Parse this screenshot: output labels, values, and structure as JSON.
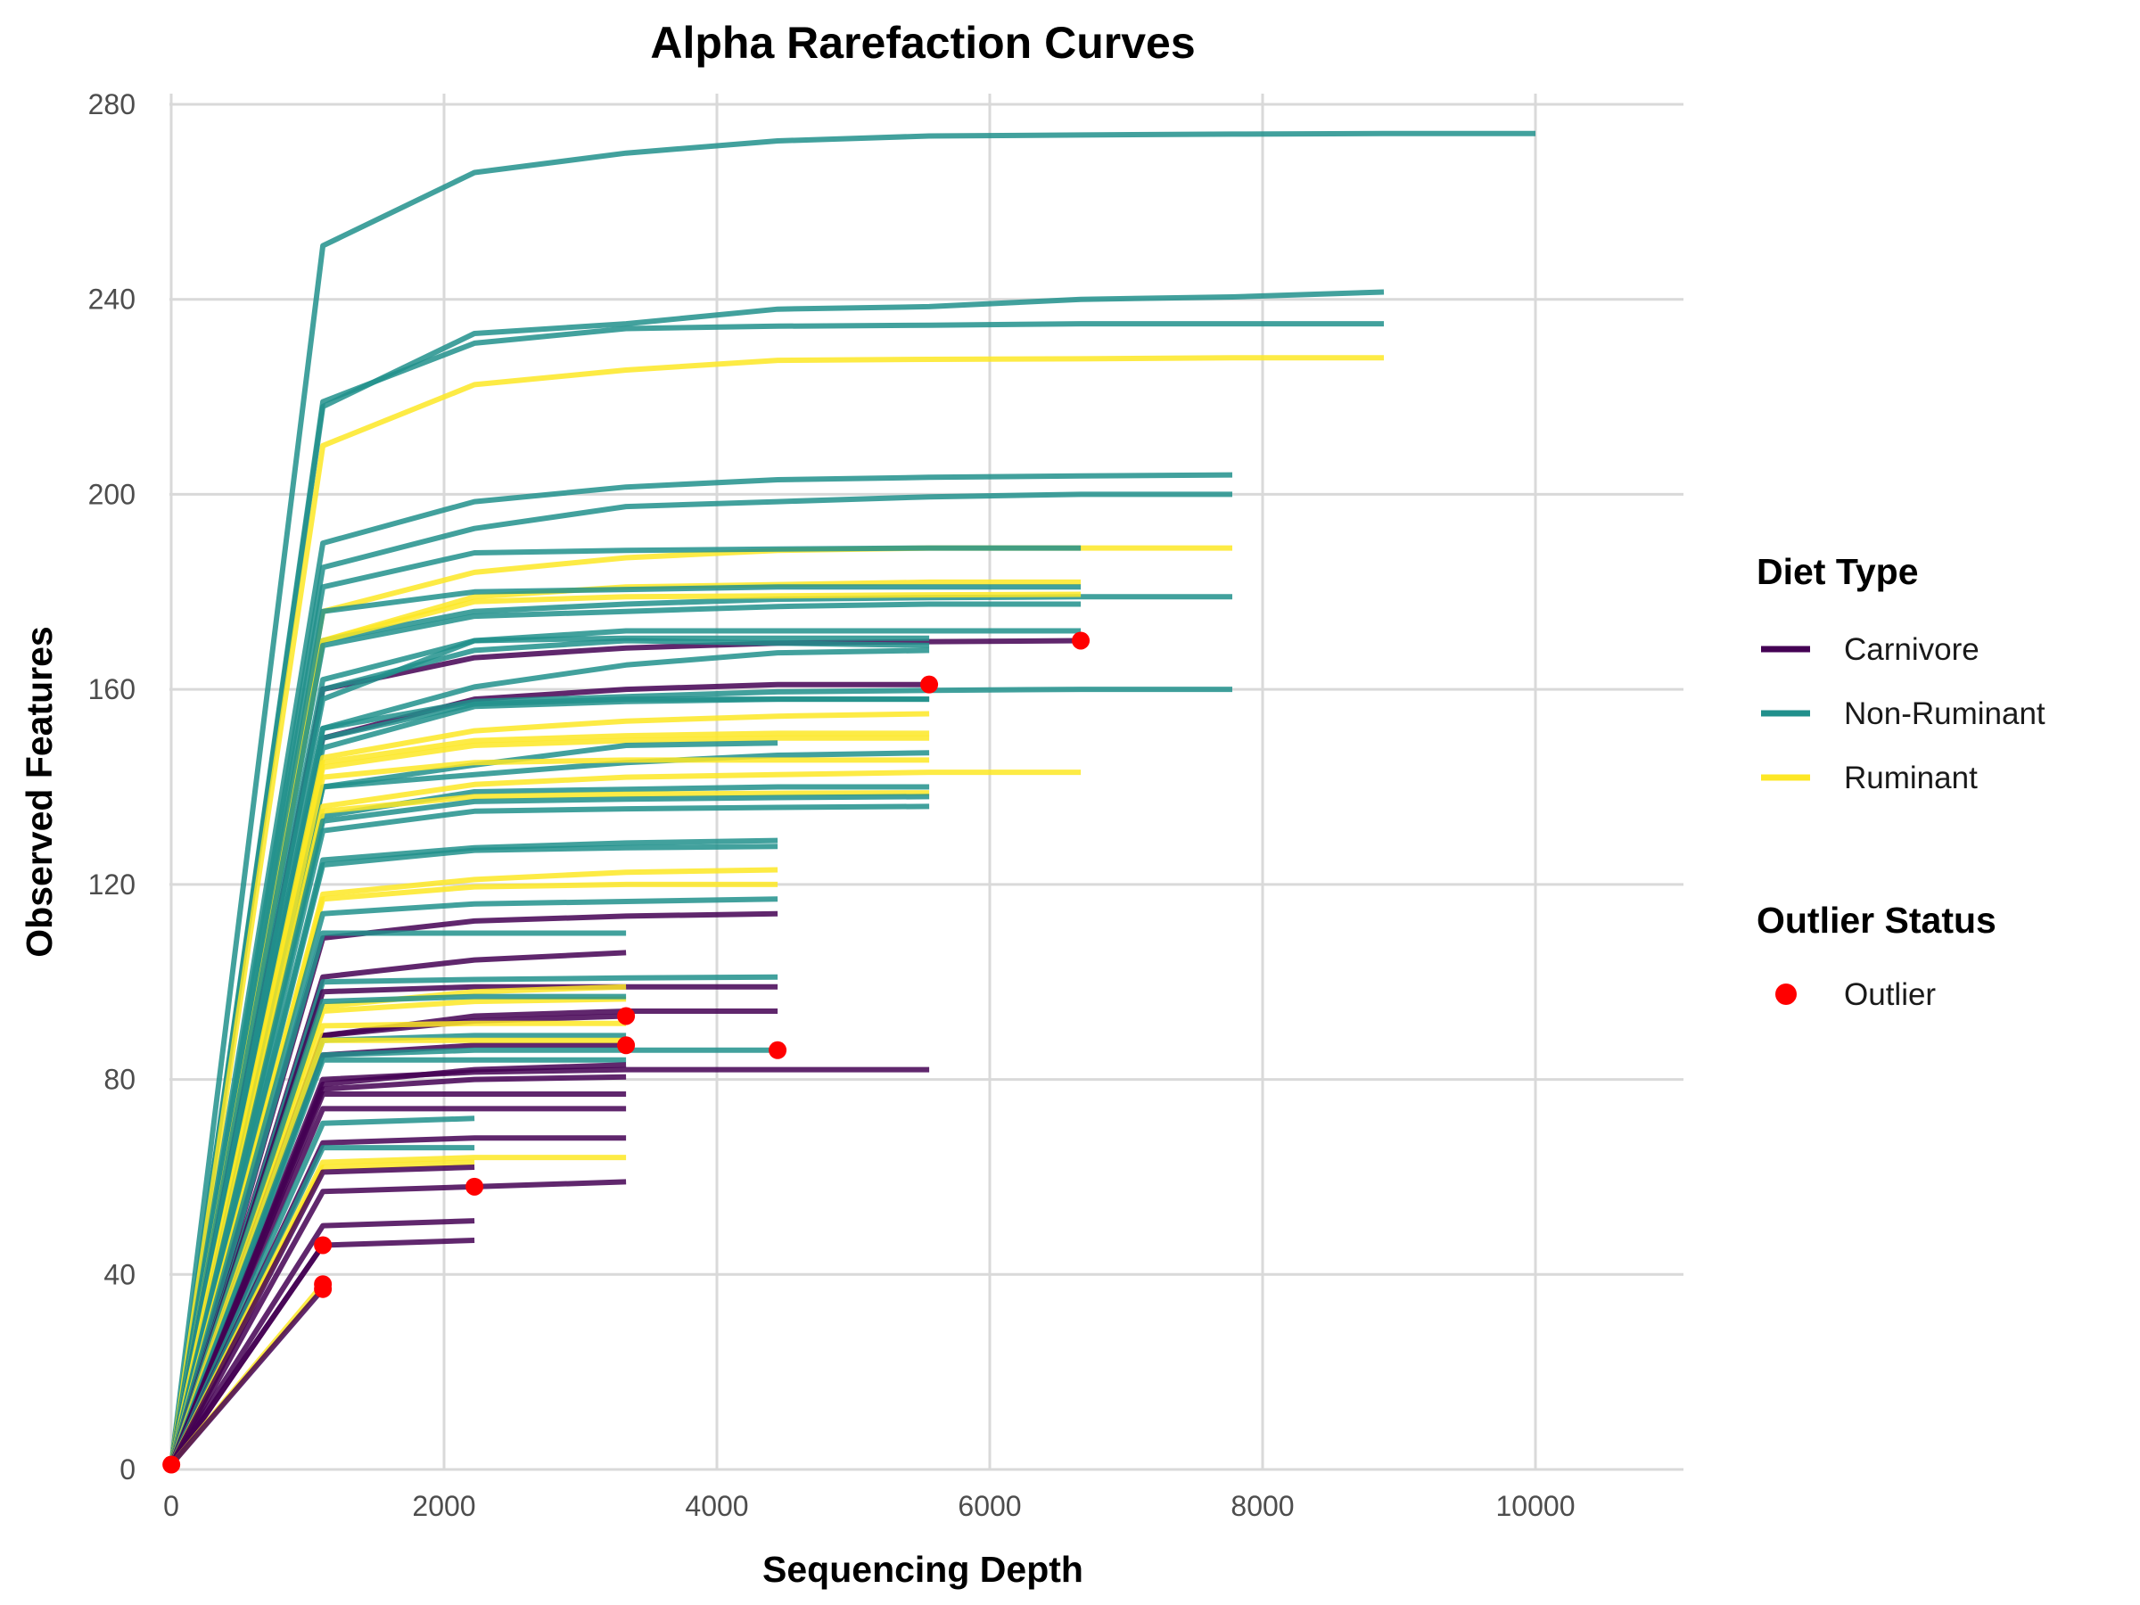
{
  "colors": {
    "Carnivore": "#440154",
    "Non-Ruminant": "#21908C",
    "Ruminant": "#FDE725",
    "Outlier": "#FF0000"
  },
  "legend": {
    "diet_title": "Diet Type",
    "outlier_title": "Outlier Status",
    "outlier_label": "Outlier"
  },
  "chart_data": {
    "type": "line",
    "title": "Alpha Rarefaction Curves",
    "xlabel": "Sequencing Depth",
    "ylabel": "Observed Features",
    "xlim": [
      0,
      11000
    ],
    "ylim": [
      0,
      280
    ],
    "x_ticks": [
      0,
      2000,
      4000,
      6000,
      8000,
      10000
    ],
    "y_ticks": [
      0,
      40,
      80,
      120,
      160,
      200,
      240,
      280
    ],
    "grid": true,
    "legend_position": "right",
    "depths": [
      1,
      1112,
      2223,
      3334,
      4445,
      5556,
      6667,
      7778,
      8889,
      10000
    ],
    "diet_types": [
      "Carnivore",
      "Non-Ruminant",
      "Ruminant"
    ],
    "series": [
      {
        "diet": "Non-Ruminant",
        "values": [
          1,
          251,
          266,
          270,
          272.5,
          273.5,
          273.7,
          273.9,
          274,
          274
        ]
      },
      {
        "diet": "Non-Ruminant",
        "values": [
          1,
          218,
          233,
          235,
          238,
          238.5,
          240,
          240.5,
          241.5
        ]
      },
      {
        "diet": "Non-Ruminant",
        "values": [
          1,
          219,
          231,
          234,
          234.5,
          234.7,
          235,
          235,
          235
        ]
      },
      {
        "diet": "Ruminant",
        "values": [
          1,
          210,
          222.5,
          225.5,
          227.5,
          227.7,
          227.8,
          228,
          228
        ]
      },
      {
        "diet": "Non-Ruminant",
        "values": [
          1,
          190,
          198.5,
          201.5,
          203,
          203.5,
          203.8,
          204
        ]
      },
      {
        "diet": "Non-Ruminant",
        "values": [
          1,
          185,
          193,
          197.5,
          198.5,
          199.5,
          200,
          200
        ]
      },
      {
        "diet": "Ruminant",
        "values": [
          1,
          176,
          184,
          187,
          188.5,
          189,
          189,
          189
        ]
      },
      {
        "diet": "Non-Ruminant",
        "values": [
          1,
          181,
          188,
          188.5,
          188.8,
          189,
          189
        ]
      },
      {
        "diet": "Ruminant",
        "values": [
          1,
          170,
          179,
          181,
          181.5,
          182,
          182
        ]
      },
      {
        "diet": "Non-Ruminant",
        "values": [
          1,
          176,
          180,
          180.5,
          181,
          181,
          181
        ]
      },
      {
        "diet": "Non-Ruminant",
        "values": [
          1,
          170,
          176,
          177.5,
          178.5,
          178.8,
          179,
          179
        ]
      },
      {
        "diet": "Ruminant",
        "values": [
          1,
          170,
          178,
          179,
          179.2,
          179.4,
          179.5
        ]
      },
      {
        "diet": "Non-Ruminant",
        "values": [
          1,
          169,
          175,
          176,
          177,
          177.5,
          177.5
        ]
      },
      {
        "diet": "Non-Ruminant",
        "values": [
          1,
          162,
          170,
          172,
          172,
          172,
          172
        ]
      },
      {
        "diet": "Carnivore",
        "values": [
          1,
          160,
          166.5,
          168.5,
          169.5,
          169.8,
          170
        ],
        "outlier": true
      },
      {
        "diet": "Non-Ruminant",
        "values": [
          1,
          158,
          170,
          170.5,
          170.5,
          170.5
        ]
      },
      {
        "diet": "Non-Ruminant",
        "values": [
          1,
          160,
          168,
          170,
          169.5,
          169
        ]
      },
      {
        "diet": "Non-Ruminant",
        "values": [
          1,
          152,
          160.5,
          165,
          167.5,
          168
        ]
      },
      {
        "diet": "Carnivore",
        "values": [
          1,
          150,
          158,
          160,
          161,
          161
        ],
        "outlier": true
      },
      {
        "diet": "Non-Ruminant",
        "values": [
          1,
          152,
          157.5,
          158.5,
          159.5,
          159.8,
          160,
          160
        ]
      },
      {
        "diet": "Non-Ruminant",
        "values": [
          1,
          150,
          157,
          158,
          158,
          158
        ]
      },
      {
        "diet": "Non-Ruminant",
        "values": [
          1,
          148,
          156.5,
          157.5,
          158,
          158
        ]
      },
      {
        "diet": "Ruminant",
        "values": [
          1,
          146,
          151.5,
          153.5,
          154.5,
          155
        ]
      },
      {
        "diet": "Ruminant",
        "values": [
          1,
          145,
          149.5,
          150.5,
          151,
          151
        ]
      },
      {
        "diet": "Ruminant",
        "values": [
          1,
          144,
          148.5,
          149.5,
          150,
          150
        ]
      },
      {
        "diet": "Non-Ruminant",
        "values": [
          1,
          140,
          144.5,
          148.5,
          149
        ]
      },
      {
        "diet": "Non-Ruminant",
        "values": [
          1,
          140,
          142.5,
          145,
          146.5,
          147
        ]
      },
      {
        "diet": "Ruminant",
        "values": [
          1,
          142,
          145,
          145.5,
          145.5,
          145.5
        ]
      },
      {
        "diet": "Ruminant",
        "values": [
          1,
          136,
          140.5,
          142,
          142.5,
          143,
          143
        ]
      },
      {
        "diet": "Non-Ruminant",
        "values": [
          1,
          134,
          139,
          139.5,
          140,
          140
        ]
      },
      {
        "diet": "Ruminant",
        "values": [
          1,
          135,
          138,
          138.5,
          138.7,
          138.8
        ]
      },
      {
        "diet": "Non-Ruminant",
        "values": [
          1,
          133,
          137,
          137.5,
          137.8,
          138
        ]
      },
      {
        "diet": "Non-Ruminant",
        "values": [
          1,
          131,
          135,
          135.5,
          135.8,
          136
        ]
      },
      {
        "diet": "Non-Ruminant",
        "values": [
          1,
          125,
          127.5,
          128.5,
          129
        ]
      },
      {
        "diet": "Non-Ruminant",
        "values": [
          1,
          124,
          127,
          127.5,
          127.8
        ]
      },
      {
        "diet": "Ruminant",
        "values": [
          1,
          118,
          121,
          122.5,
          123
        ]
      },
      {
        "diet": "Ruminant",
        "values": [
          1,
          117,
          119.5,
          120,
          120
        ]
      },
      {
        "diet": "Non-Ruminant",
        "values": [
          1,
          114,
          116,
          116.5,
          117
        ]
      },
      {
        "diet": "Carnivore",
        "values": [
          1,
          109,
          112.5,
          113.5,
          114
        ]
      },
      {
        "diet": "Non-Ruminant",
        "values": [
          1,
          110,
          110,
          110
        ]
      },
      {
        "diet": "Carnivore",
        "values": [
          1,
          101,
          104.5,
          106
        ]
      },
      {
        "diet": "Non-Ruminant",
        "values": [
          1,
          100,
          100.5,
          100.8,
          101
        ]
      },
      {
        "diet": "Carnivore",
        "values": [
          1,
          98,
          99,
          99,
          99
        ]
      },
      {
        "diet": "Ruminant",
        "values": [
          1,
          95,
          98,
          99
        ]
      },
      {
        "diet": "Ruminant",
        "values": [
          1,
          94,
          96,
          96.5
        ]
      },
      {
        "diet": "Non-Ruminant",
        "values": [
          1,
          96,
          97,
          97
        ]
      },
      {
        "diet": "Carnivore",
        "values": [
          1,
          89,
          93,
          94,
          94
        ]
      },
      {
        "diet": "Carnivore",
        "values": [
          1,
          89,
          92,
          93
        ],
        "outlier": true
      },
      {
        "diet": "Ruminant",
        "values": [
          1,
          91,
          91.5,
          91.5
        ]
      },
      {
        "diet": "Non-Ruminant",
        "values": [
          1,
          88,
          89,
          89
        ]
      },
      {
        "diet": "Carnivore",
        "values": [
          1,
          85,
          87,
          87
        ],
        "outlier": true
      },
      {
        "diet": "Ruminant",
        "values": [
          1,
          88,
          88,
          88
        ]
      },
      {
        "diet": "Non-Ruminant",
        "values": [
          1,
          85,
          86,
          86,
          86
        ],
        "outlier": true
      },
      {
        "diet": "Carnivore",
        "values": [
          1,
          80,
          81.5,
          82,
          82,
          82
        ]
      },
      {
        "diet": "Non-Ruminant",
        "values": [
          1,
          84,
          84,
          84
        ]
      },
      {
        "diet": "Carnivore",
        "values": [
          1,
          79,
          82,
          83
        ]
      },
      {
        "diet": "Carnivore",
        "values": [
          1,
          78,
          80,
          80.5
        ]
      },
      {
        "diet": "Carnivore",
        "values": [
          1,
          77,
          77,
          77
        ]
      },
      {
        "diet": "Carnivore",
        "values": [
          1,
          74,
          74,
          74
        ]
      },
      {
        "diet": "Non-Ruminant",
        "values": [
          1,
          71,
          72
        ]
      },
      {
        "diet": "Carnivore",
        "values": [
          1,
          67,
          68,
          68
        ]
      },
      {
        "diet": "Non-Ruminant",
        "values": [
          1,
          66,
          66
        ]
      },
      {
        "diet": "Ruminant",
        "values": [
          1,
          63,
          64,
          64
        ]
      },
      {
        "diet": "Ruminant",
        "values": [
          1,
          62,
          63
        ]
      },
      {
        "diet": "Carnivore",
        "values": [
          1,
          61,
          62
        ]
      },
      {
        "diet": "Carnivore",
        "values": [
          1,
          57,
          58,
          59
        ],
        "outlier": true
      },
      {
        "diet": "Carnivore",
        "values": [
          1,
          50,
          51
        ]
      },
      {
        "diet": "Carnivore",
        "values": [
          1,
          46,
          47
        ]
      },
      {
        "diet": "Carnivore",
        "values": [
          1,
          46
        ],
        "outlier": true
      },
      {
        "diet": "Ruminant",
        "values": [
          1,
          38
        ],
        "outlier": true
      },
      {
        "diet": "Carnivore",
        "values": [
          1,
          37
        ],
        "outlier": true
      }
    ],
    "outliers": [
      {
        "x": 1,
        "y": 1
      },
      {
        "x": 6667,
        "y": 170
      },
      {
        "x": 5556,
        "y": 161
      },
      {
        "x": 3334,
        "y": 93
      },
      {
        "x": 3334,
        "y": 87
      },
      {
        "x": 4445,
        "y": 86
      },
      {
        "x": 2223,
        "y": 58
      },
      {
        "x": 1112,
        "y": 46
      },
      {
        "x": 1112,
        "y": 38
      },
      {
        "x": 1112,
        "y": 37
      }
    ]
  }
}
